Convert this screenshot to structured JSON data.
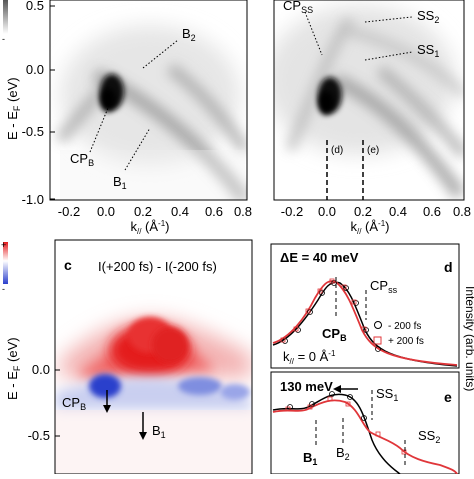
{
  "top_left": {
    "ylabel": "E - E",
    "ylabel_sub": "F",
    "ylabel_unit": " (eV)",
    "xlabel": "k",
    "xlabel_sub": "//",
    "xlabel_unit": " (Å",
    "xlabel_sup": "-1",
    "xlabel_close": ")",
    "yticks": [
      "0.5",
      "0.0",
      "-0.5",
      "-1.0"
    ],
    "xticks": [
      "-0.2",
      "0.0",
      "0.2",
      "0.4",
      "0.6",
      "0.8"
    ],
    "annotations": {
      "b2": "B",
      "b2_sub": "2",
      "cpb": "CP",
      "cpb_sub": "B",
      "b1": "B",
      "b1_sub": "1"
    },
    "colorbar_marks": [
      "-"
    ]
  },
  "top_right": {
    "xlabel": "k",
    "xlabel_sub": "//",
    "xlabel_unit": " (Å",
    "xlabel_sup": "-1",
    "xlabel_close": ")",
    "xticks": [
      "-0.2",
      "0.0",
      "0.2",
      "0.4",
      "0.6",
      "0.8"
    ],
    "annotations": {
      "cpss": "CP",
      "cpss_sub": "SS",
      "ss2": "SS",
      "ss2_sub": "2",
      "ss1": "SS",
      "ss1_sub": "1",
      "d": "(d)",
      "e": "(e)"
    }
  },
  "panel_c": {
    "panel_label": "c",
    "title": "I(+200 fs) - I(-200 fs)",
    "ylabel": "E - E",
    "ylabel_sub": "F",
    "ylabel_unit": " (eV)",
    "yticks": [
      "0.0",
      "-0.5"
    ],
    "colorbar_marks": [
      "+",
      "-"
    ],
    "annotations": {
      "cpb": "CP",
      "cpb_sub": "B",
      "b1": "B",
      "b1_sub": "1"
    }
  },
  "panel_d": {
    "panel_label": "d",
    "delta_e": "ΔE = 40 meV",
    "cpss": "CP",
    "cpss_sub": "ss",
    "cpb": "CP",
    "cpb_sub": "B",
    "legend": [
      "- 200 fs",
      "+ 200 fs"
    ],
    "k_label": "k",
    "k_sub": "//",
    "k_value": " = 0 Å",
    "k_sup": "-1"
  },
  "panel_e": {
    "panel_label": "e",
    "shift": "130 meV",
    "ss1": "SS",
    "ss1_sub": "1",
    "b1": "B",
    "b1_sub": "1",
    "b2": "B",
    "b2_sub": "2",
    "ss2": "SS",
    "ss2_sub": "2"
  },
  "right_axis": {
    "label": "Intensity (arb. units)"
  },
  "colors": {
    "minus": "#000000",
    "plus": "#e0363a",
    "positive": "#e41a1c",
    "negative": "#2b3fcc"
  }
}
